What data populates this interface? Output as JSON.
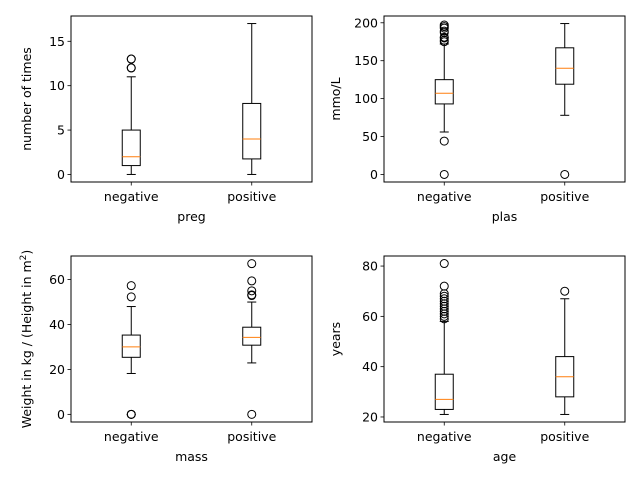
{
  "chart_data": [
    {
      "type": "box",
      "xlabel": "preg",
      "ylabel": "number of times",
      "categories": [
        "negative",
        "positive"
      ],
      "ylim": [
        -0.85,
        17.85
      ],
      "yticks": [
        0,
        5,
        10,
        15
      ],
      "boxes": [
        {
          "category": "negative",
          "whisker_low": 0,
          "q1": 1,
          "median": 2,
          "q3": 5,
          "whisker_high": 11,
          "fliers": [
            12,
            12,
            13,
            13
          ]
        },
        {
          "category": "positive",
          "whisker_low": 0,
          "q1": 1.75,
          "median": 4,
          "q3": 8,
          "whisker_high": 17,
          "fliers": []
        }
      ]
    },
    {
      "type": "box",
      "xlabel": "plas",
      "ylabel": "mmo/L",
      "categories": [
        "negative",
        "positive"
      ],
      "ylim": [
        -9.95,
        208.95
      ],
      "yticks": [
        0,
        50,
        100,
        150,
        200
      ],
      "boxes": [
        {
          "category": "negative",
          "whisker_low": 56,
          "q1": 93,
          "median": 107,
          "q3": 125,
          "whisker_high": 172,
          "fliers": [
            0,
            44,
            175,
            177,
            180,
            181,
            187,
            189,
            193,
            195,
            197
          ]
        },
        {
          "category": "positive",
          "whisker_low": 78,
          "q1": 119,
          "median": 140,
          "q3": 167,
          "whisker_high": 199,
          "fliers": [
            0
          ]
        }
      ]
    },
    {
      "type": "box",
      "xlabel": "mass",
      "ylabel": "Weight in kg / (Height in m",
      "ylabel_superscript": "2",
      "ylabel_suffix": ")",
      "categories": [
        "negative",
        "positive"
      ],
      "ylim": [
        -3.4,
        70.5
      ],
      "yticks": [
        0,
        20,
        40,
        60
      ],
      "boxes": [
        {
          "category": "negative",
          "whisker_low": 18.2,
          "q1": 25.4,
          "median": 30.05,
          "q3": 35.3,
          "whisker_high": 48,
          "fliers": [
            0,
            0,
            0,
            52.3,
            57.3
          ]
        },
        {
          "category": "positive",
          "whisker_low": 22.9,
          "q1": 30.8,
          "median": 34.25,
          "q3": 38.8,
          "whisker_high": 50,
          "fliers": [
            0,
            52.9,
            53.2,
            55,
            59.4,
            67.1
          ]
        }
      ]
    },
    {
      "type": "box",
      "xlabel": "age",
      "ylabel": "years",
      "categories": [
        "negative",
        "positive"
      ],
      "ylim": [
        18,
        84
      ],
      "yticks": [
        20,
        40,
        60,
        80
      ],
      "boxes": [
        {
          "category": "negative",
          "whisker_low": 21,
          "q1": 23,
          "median": 27,
          "q3": 37,
          "whisker_high": 58,
          "fliers": [
            59,
            60,
            61,
            62,
            63,
            64,
            65,
            66,
            67,
            68,
            69,
            72,
            81
          ]
        },
        {
          "category": "positive",
          "whisker_low": 21,
          "q1": 28,
          "median": 36,
          "q3": 44,
          "whisker_high": 67,
          "fliers": [
            70
          ]
        }
      ]
    }
  ]
}
